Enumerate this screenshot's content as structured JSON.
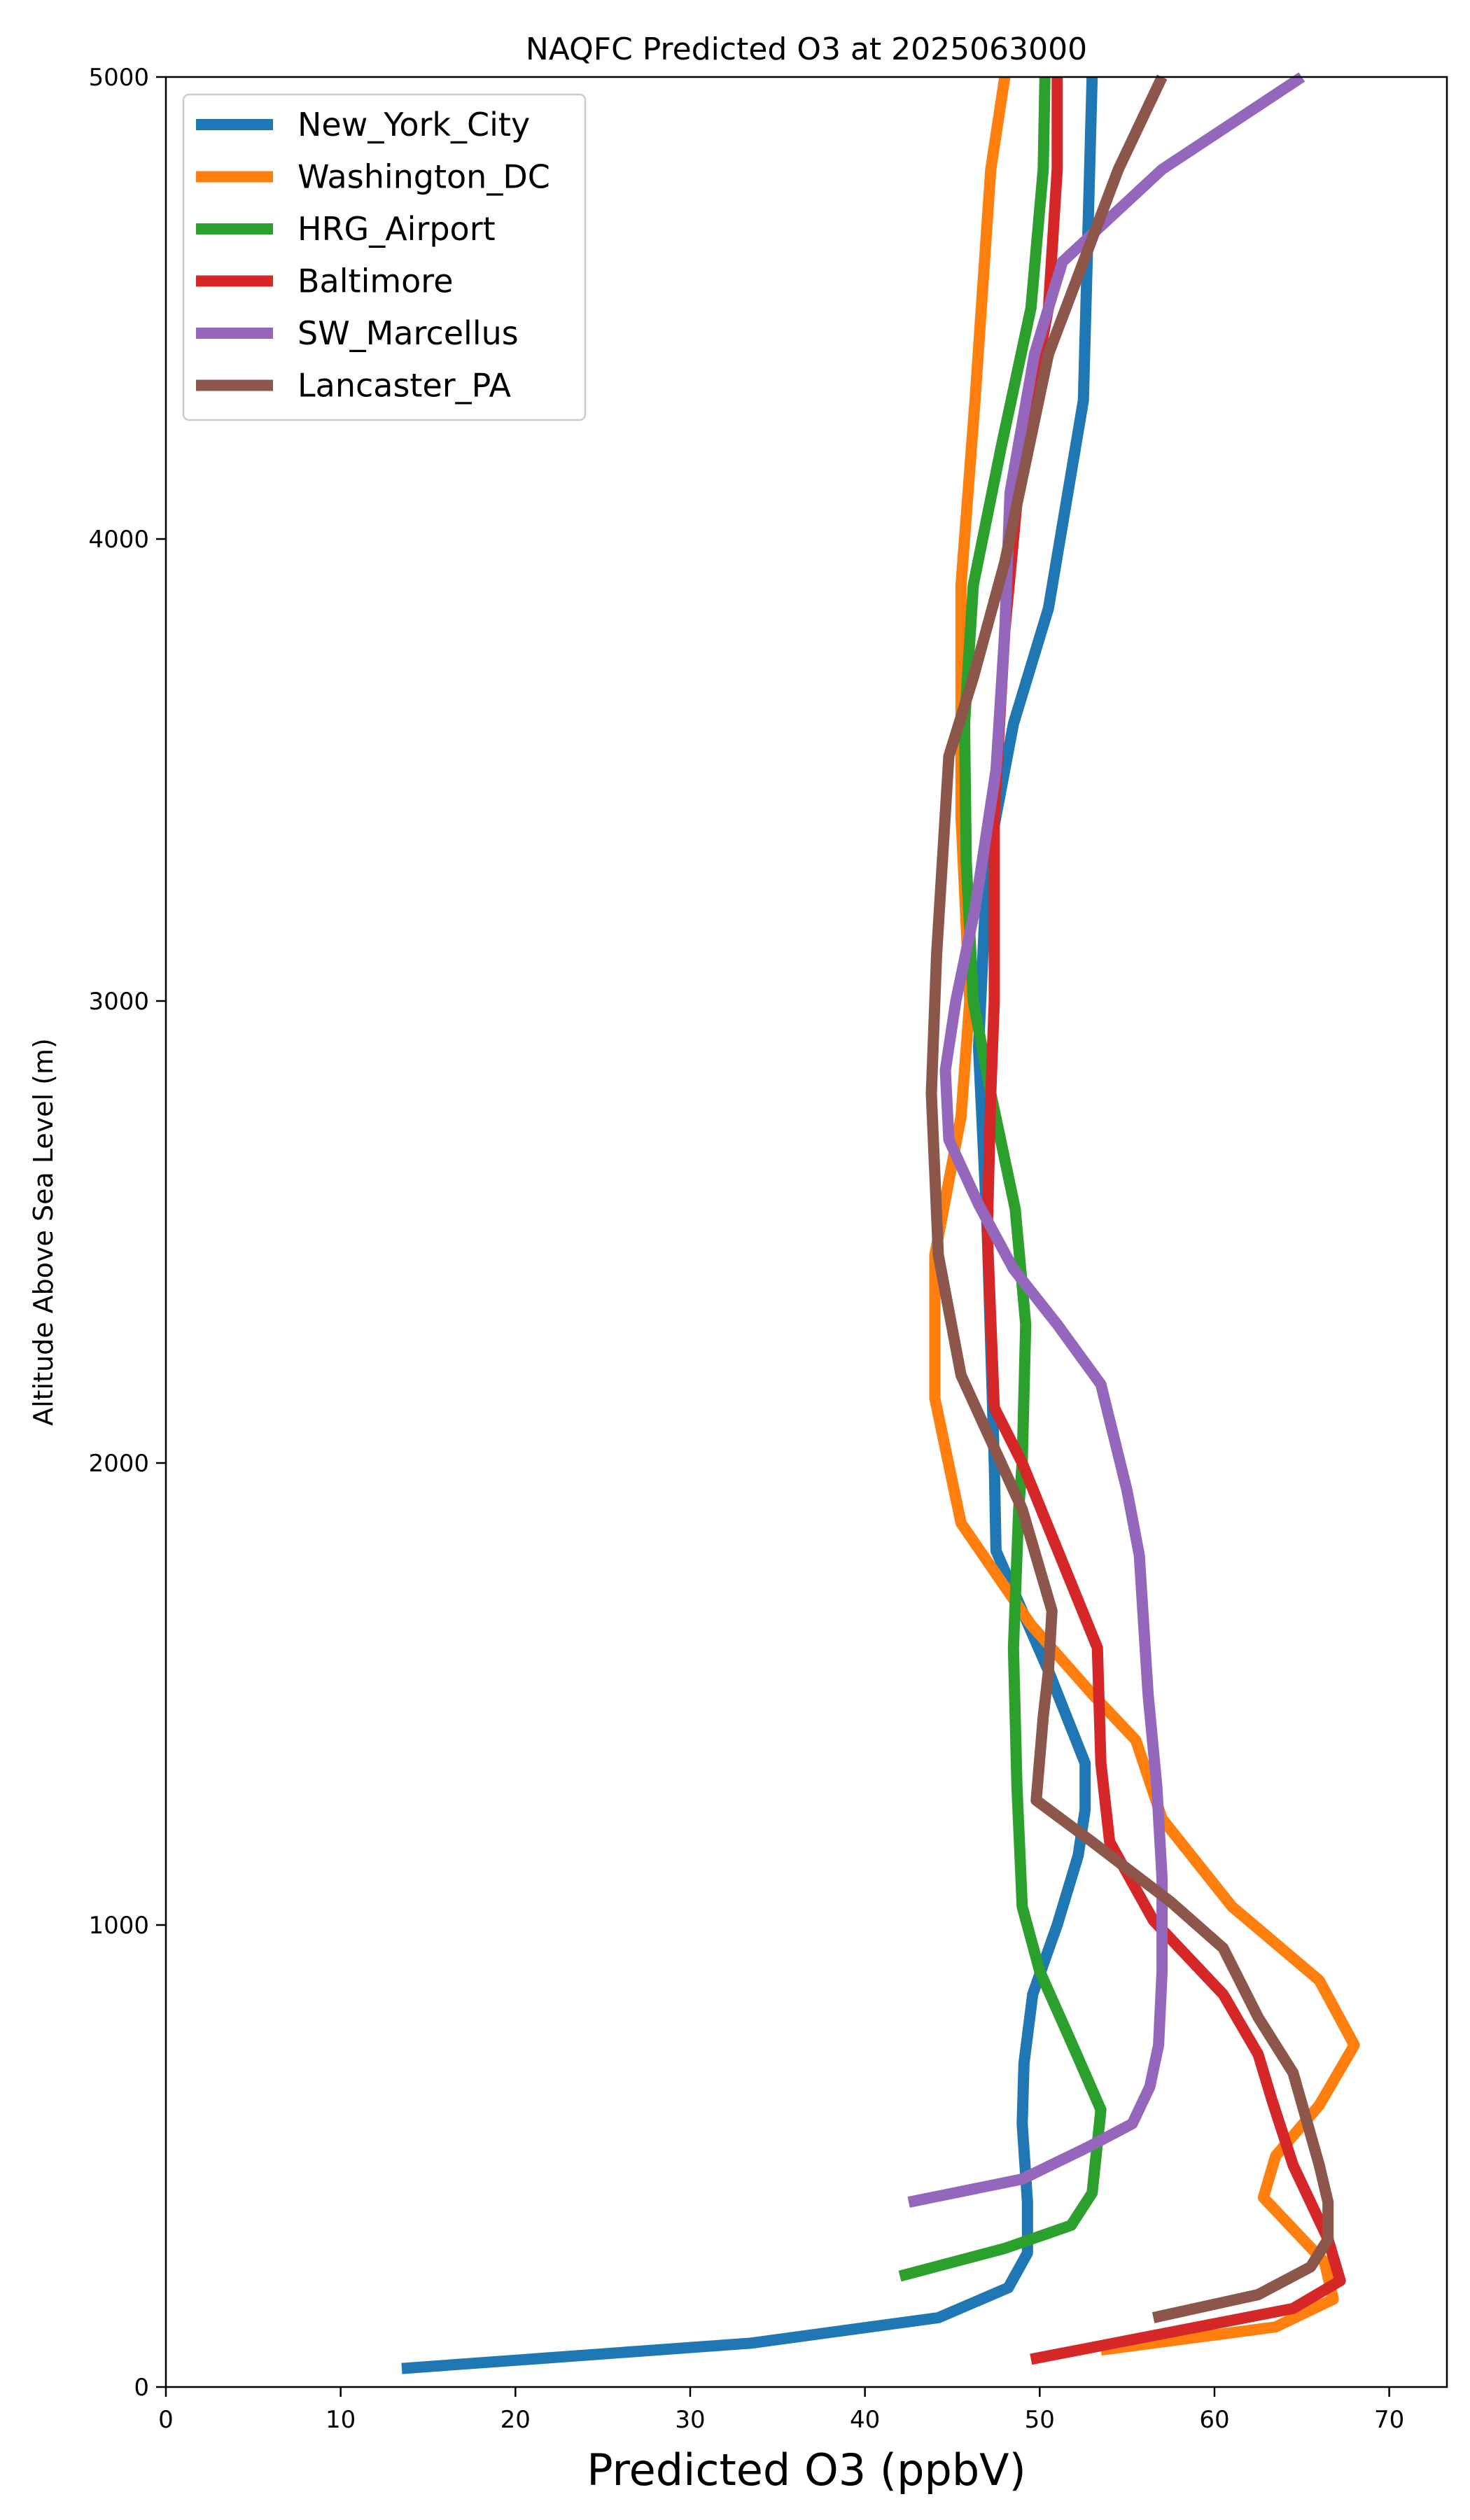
{
  "chart_data": {
    "type": "line",
    "title": "NAQFC Predicted O3 at 2025063000",
    "xlabel": "Predicted O3 (ppbV)",
    "ylabel": "Altitude Above Sea Level (m)",
    "xlim": [
      0,
      73.3
    ],
    "ylim": [
      0,
      5000
    ],
    "xticks": [
      0,
      10,
      20,
      30,
      40,
      50,
      60,
      70
    ],
    "yticks": [
      0,
      1000,
      2000,
      3000,
      4000,
      5000
    ],
    "grid": false,
    "legend_position": "top-left",
    "series": [
      {
        "name": "New_York_City",
        "color": "#1f77b4",
        "points": [
          [
            13.5,
            40
          ],
          [
            33.5,
            95
          ],
          [
            44.2,
            150
          ],
          [
            48.2,
            215
          ],
          [
            49.3,
            290
          ],
          [
            49.3,
            400
          ],
          [
            49.0,
            570
          ],
          [
            49.1,
            700
          ],
          [
            49.6,
            850
          ],
          [
            51.0,
            1000
          ],
          [
            52.2,
            1150
          ],
          [
            52.6,
            1250
          ],
          [
            52.6,
            1350
          ],
          [
            50.5,
            1550
          ],
          [
            47.5,
            1810
          ],
          [
            47.4,
            2000
          ],
          [
            47.0,
            2500
          ],
          [
            46.5,
            2900
          ],
          [
            47.0,
            3300
          ],
          [
            48.5,
            3600
          ],
          [
            50.5,
            3850
          ],
          [
            52.5,
            4300
          ],
          [
            53.0,
            5000
          ]
        ]
      },
      {
        "name": "Washington_DC",
        "color": "#ff7f0e",
        "points": [
          [
            53.5,
            80
          ],
          [
            63.5,
            130
          ],
          [
            66.8,
            190
          ],
          [
            66.3,
            270
          ],
          [
            64.8,
            330
          ],
          [
            62.8,
            410
          ],
          [
            63.5,
            500
          ],
          [
            66.0,
            610
          ],
          [
            68.0,
            740
          ],
          [
            66.0,
            880
          ],
          [
            61.0,
            1040
          ],
          [
            57.0,
            1230
          ],
          [
            55.5,
            1400
          ],
          [
            53.0,
            1500
          ],
          [
            49.5,
            1650
          ],
          [
            45.5,
            1870
          ],
          [
            44.0,
            2140
          ],
          [
            44.0,
            2450
          ],
          [
            45.5,
            2750
          ],
          [
            46.0,
            3000
          ],
          [
            45.5,
            3400
          ],
          [
            45.5,
            3900
          ],
          [
            46.3,
            4300
          ],
          [
            47.2,
            4800
          ],
          [
            48.0,
            5000
          ]
        ]
      },
      {
        "name": "HRG_Airport",
        "color": "#2ca02c",
        "points": [
          [
            42.0,
            240
          ],
          [
            48.0,
            300
          ],
          [
            51.8,
            350
          ],
          [
            53.0,
            420
          ],
          [
            53.5,
            600
          ],
          [
            52.0,
            730
          ],
          [
            50.0,
            900
          ],
          [
            49.0,
            1040
          ],
          [
            48.7,
            1300
          ],
          [
            48.5,
            1600
          ],
          [
            48.8,
            1900
          ],
          [
            49.0,
            2000
          ],
          [
            49.2,
            2300
          ],
          [
            48.6,
            2550
          ],
          [
            47.2,
            2800
          ],
          [
            46.2,
            3000
          ],
          [
            45.8,
            3300
          ],
          [
            45.7,
            3600
          ],
          [
            46.2,
            3900
          ],
          [
            47.8,
            4200
          ],
          [
            49.5,
            4500
          ],
          [
            50.2,
            4800
          ],
          [
            50.3,
            5000
          ]
        ]
      },
      {
        "name": "Baltimore",
        "color": "#d62728",
        "points": [
          [
            49.5,
            60
          ],
          [
            64.5,
            170
          ],
          [
            67.2,
            230
          ],
          [
            66.5,
            320
          ],
          [
            64.5,
            480
          ],
          [
            63.3,
            620
          ],
          [
            62.5,
            720
          ],
          [
            60.5,
            850
          ],
          [
            56.5,
            1010
          ],
          [
            54.0,
            1180
          ],
          [
            53.5,
            1350
          ],
          [
            53.3,
            1600
          ],
          [
            49.0,
            2000
          ],
          [
            47.4,
            2120
          ],
          [
            47.0,
            2500
          ],
          [
            47.2,
            2800
          ],
          [
            47.4,
            3000
          ],
          [
            47.4,
            3400
          ],
          [
            48.0,
            3800
          ],
          [
            49.0,
            4200
          ],
          [
            50.5,
            4500
          ],
          [
            51.0,
            4800
          ],
          [
            51.0,
            5000
          ]
        ]
      },
      {
        "name": "SW_Marcellus",
        "color": "#9467bd",
        "points": [
          [
            42.5,
            400
          ],
          [
            49.0,
            450
          ],
          [
            52.8,
            520
          ],
          [
            55.3,
            570
          ],
          [
            56.3,
            650
          ],
          [
            56.8,
            740
          ],
          [
            57.0,
            900
          ],
          [
            57.0,
            1100
          ],
          [
            56.7,
            1300
          ],
          [
            56.2,
            1500
          ],
          [
            55.7,
            1800
          ],
          [
            55.0,
            1940
          ],
          [
            53.5,
            2170
          ],
          [
            51.0,
            2300
          ],
          [
            48.5,
            2420
          ],
          [
            46.5,
            2560
          ],
          [
            44.8,
            2700
          ],
          [
            44.6,
            2850
          ],
          [
            45.2,
            3000
          ],
          [
            46.3,
            3200
          ],
          [
            47.5,
            3500
          ],
          [
            48.0,
            3800
          ],
          [
            48.3,
            4100
          ],
          [
            49.7,
            4400
          ],
          [
            51.3,
            4600
          ],
          [
            57.0,
            4800
          ],
          [
            65.0,
            5000
          ]
        ]
      },
      {
        "name": "Lancaster_PA",
        "color": "#8c564b",
        "points": [
          [
            56.5,
            150
          ],
          [
            62.5,
            200
          ],
          [
            65.5,
            260
          ],
          [
            66.5,
            320
          ],
          [
            66.5,
            400
          ],
          [
            66.0,
            480
          ],
          [
            64.5,
            680
          ],
          [
            62.5,
            800
          ],
          [
            60.5,
            950
          ],
          [
            57.5,
            1050
          ],
          [
            53.0,
            1180
          ],
          [
            49.8,
            1270
          ],
          [
            50.2,
            1450
          ],
          [
            50.5,
            1550
          ],
          [
            50.7,
            1680
          ],
          [
            49.0,
            1900
          ],
          [
            45.5,
            2190
          ],
          [
            44.2,
            2450
          ],
          [
            43.8,
            2800
          ],
          [
            44.1,
            3100
          ],
          [
            44.8,
            3530
          ],
          [
            46.2,
            3700
          ],
          [
            48.0,
            3950
          ],
          [
            50.5,
            4400
          ],
          [
            54.5,
            4800
          ],
          [
            57.0,
            5000
          ]
        ]
      }
    ]
  }
}
